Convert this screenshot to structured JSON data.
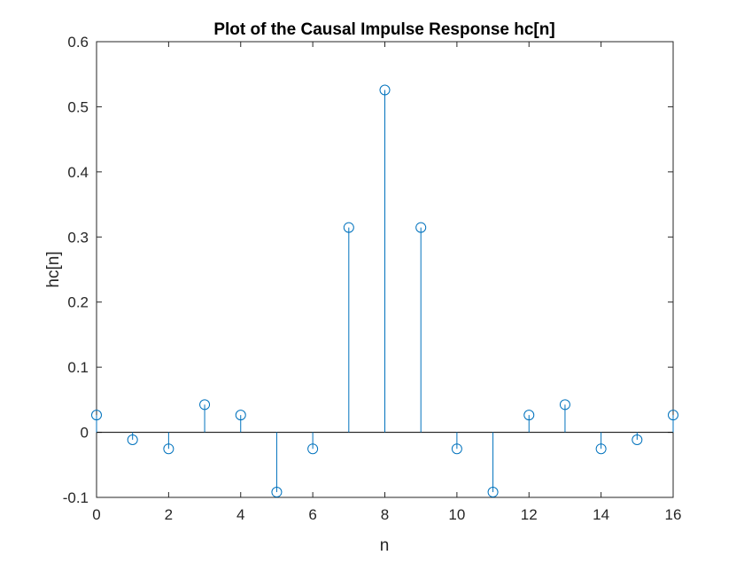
{
  "chart_data": {
    "type": "stem",
    "title": "Plot of the Causal Impulse Response hc[n]",
    "xlabel": "n",
    "ylabel": "hc[n]",
    "xlim": [
      0,
      16
    ],
    "ylim": [
      -0.1,
      0.6
    ],
    "xticks": [
      "0",
      "2",
      "4",
      "6",
      "8",
      "10",
      "12",
      "14",
      "16"
    ],
    "yticks": [
      "-0.1",
      "0",
      "0.1",
      "0.2",
      "0.3",
      "0.4",
      "0.5",
      "0.6"
    ],
    "grid": false,
    "box": true,
    "series": [
      {
        "color": "#0072BD",
        "marker": "open-circle",
        "x": [
          0,
          1,
          2,
          3,
          4,
          5,
          6,
          7,
          8,
          9,
          10,
          11,
          12,
          13,
          14,
          15,
          16
        ],
        "y": [
          0.0265,
          -0.0115,
          -0.0254,
          0.0425,
          0.0265,
          -0.0919,
          -0.0254,
          0.3145,
          0.5258,
          0.3145,
          -0.0254,
          -0.0919,
          0.0265,
          0.0425,
          -0.0254,
          -0.0115,
          0.0265
        ]
      }
    ]
  }
}
